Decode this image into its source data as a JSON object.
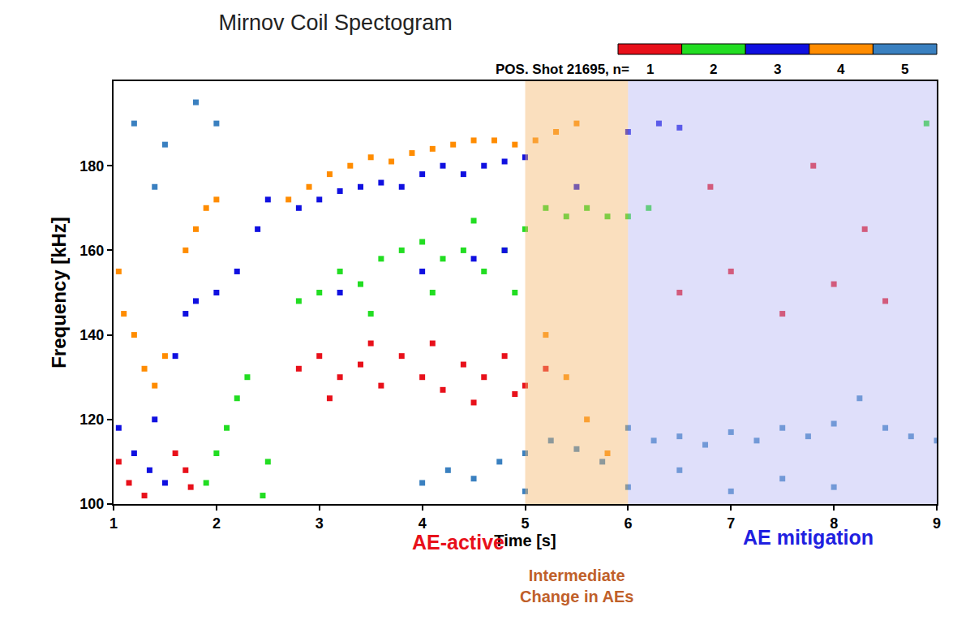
{
  "chart_data": {
    "type": "scatter",
    "title": "Mirnov Coil Spectogram",
    "subtitle": "POS. Shot 21695, n=",
    "x_label": "Time [s]",
    "y_label": "Frequency [kHz]",
    "xlim": [
      1,
      9
    ],
    "ylim": [
      100,
      200
    ],
    "xticks": [
      1,
      2,
      3,
      4,
      5,
      6,
      7,
      8,
      9
    ],
    "yticks": [
      100,
      120,
      140,
      160,
      180
    ],
    "marker": "square",
    "series": [
      {
        "name": "1",
        "color": "#e8101a",
        "x": [
          1.05,
          1.15,
          1.3,
          1.6,
          1.7,
          1.75,
          2.8,
          3.0,
          3.2,
          3.4,
          3.6,
          3.8,
          4.0,
          4.2,
          4.4,
          4.6,
          4.8,
          5.0,
          5.2,
          3.1,
          3.5,
          4.1,
          4.5,
          4.9,
          6.5,
          7.0,
          7.5,
          8.0,
          8.5,
          6.8,
          7.8,
          8.3
        ],
        "y": [
          110,
          105,
          102,
          112,
          108,
          104,
          132,
          135,
          130,
          133,
          128,
          135,
          130,
          127,
          133,
          130,
          135,
          128,
          132,
          125,
          138,
          138,
          124,
          126,
          150,
          155,
          145,
          152,
          148,
          175,
          180,
          165
        ]
      },
      {
        "name": "2",
        "color": "#22dd22",
        "x": [
          1.9,
          2.0,
          2.1,
          2.2,
          2.3,
          2.45,
          2.5,
          2.8,
          3.0,
          3.2,
          3.4,
          3.6,
          3.8,
          4.0,
          4.2,
          4.4,
          4.6,
          4.8,
          5.0,
          5.2,
          5.4,
          5.6,
          5.8,
          6.0,
          6.2,
          3.5,
          4.1,
          4.5,
          4.9,
          8.9
        ],
        "y": [
          105,
          112,
          118,
          125,
          130,
          102,
          110,
          148,
          150,
          155,
          152,
          158,
          160,
          162,
          158,
          160,
          155,
          160,
          165,
          170,
          168,
          170,
          168,
          168,
          170,
          145,
          150,
          167,
          150,
          190
        ]
      },
      {
        "name": "3",
        "color": "#1010e0",
        "x": [
          1.05,
          1.2,
          1.35,
          1.5,
          1.4,
          1.6,
          1.7,
          1.8,
          2.0,
          2.2,
          2.4,
          2.5,
          2.8,
          3.0,
          3.2,
          3.4,
          3.6,
          3.8,
          4.0,
          4.2,
          4.4,
          4.6,
          4.8,
          5.0,
          5.5,
          6.0,
          6.3,
          6.5,
          4.0,
          4.5,
          4.8,
          3.2
        ],
        "y": [
          118,
          112,
          108,
          105,
          120,
          135,
          145,
          148,
          150,
          155,
          165,
          172,
          170,
          172,
          174,
          175,
          176,
          175,
          178,
          180,
          178,
          180,
          181,
          182,
          175,
          188,
          190,
          189,
          155,
          158,
          160,
          150
        ]
      },
      {
        "name": "4",
        "color": "#ff8c00",
        "x": [
          1.05,
          1.1,
          1.2,
          1.3,
          1.4,
          1.5,
          1.7,
          1.8,
          1.9,
          2.0,
          2.7,
          2.9,
          3.1,
          3.3,
          3.5,
          3.7,
          3.9,
          4.1,
          4.3,
          4.5,
          4.7,
          4.9,
          5.1,
          5.3,
          5.5,
          5.2,
          5.4,
          5.6,
          5.8
        ],
        "y": [
          155,
          145,
          140,
          132,
          128,
          135,
          160,
          165,
          170,
          172,
          172,
          175,
          178,
          180,
          182,
          181,
          183,
          184,
          185,
          186,
          186,
          185,
          186,
          188,
          190,
          140,
          130,
          120,
          112
        ]
      },
      {
        "name": "5",
        "color": "#3a80c0",
        "x": [
          4.0,
          4.25,
          4.5,
          4.75,
          5.0,
          5.25,
          5.5,
          5.75,
          6.0,
          6.25,
          6.5,
          6.75,
          7.0,
          7.25,
          7.5,
          7.75,
          8.0,
          8.25,
          8.5,
          8.75,
          9.0,
          5.0,
          6.0,
          7.0,
          8.0,
          6.5,
          7.5,
          1.2,
          1.5,
          1.8,
          2.0,
          1.4
        ],
        "y": [
          105,
          108,
          106,
          110,
          112,
          115,
          113,
          110,
          118,
          115,
          116,
          114,
          117,
          115,
          118,
          116,
          119,
          125,
          118,
          116,
          115,
          103,
          104,
          103,
          104,
          108,
          106,
          190,
          185,
          195,
          190,
          175
        ]
      }
    ],
    "regions": [
      {
        "x": [
          5,
          6
        ],
        "color": "#f5b96e"
      },
      {
        "x": [
          6,
          9
        ],
        "color": "#b8b8f4"
      }
    ],
    "annotations": [
      {
        "text": "AE-active",
        "color": "#e8101a"
      },
      {
        "text": "Intermediate Change in AEs",
        "color": "#c0602a"
      },
      {
        "text": "AE mitigation",
        "color": "#2020e0"
      }
    ]
  }
}
